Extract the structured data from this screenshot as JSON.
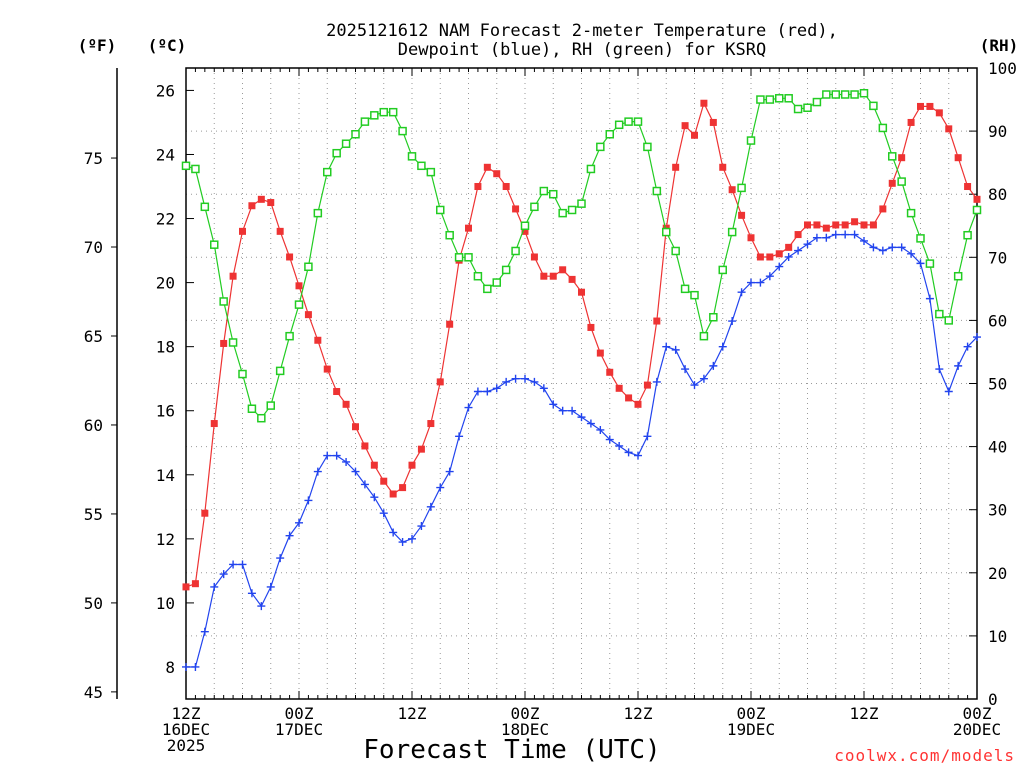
{
  "title_line1": "2025121612 NAM Forecast 2-meter Temperature (red),",
  "title_line2": "Dewpoint (blue), RH (green) for KSRQ",
  "credit": "coolwx.com/models",
  "chart_data": {
    "type": "line",
    "title": "2025121612 NAM Forecast 2-meter Temperature (red), Dewpoint (blue), RH (green) for KSRQ",
    "xlabel": "Forecast Time (UTC)",
    "x_unit": "hours from 12Z 16DEC2025",
    "xlim": [
      0,
      84
    ],
    "x_ticks": [
      {
        "hour": 0,
        "lines": [
          "12Z",
          "16DEC",
          "2025"
        ]
      },
      {
        "hour": 12,
        "lines": [
          "00Z",
          "17DEC"
        ]
      },
      {
        "hour": 24,
        "lines": [
          "12Z"
        ]
      },
      {
        "hour": 36,
        "lines": [
          "00Z",
          "18DEC"
        ]
      },
      {
        "hour": 48,
        "lines": [
          "12Z"
        ]
      },
      {
        "hour": 60,
        "lines": [
          "00Z",
          "19DEC"
        ]
      },
      {
        "hour": 72,
        "lines": [
          "12Z"
        ]
      },
      {
        "hour": 84,
        "lines": [
          "00Z",
          "20DEC"
        ]
      }
    ],
    "axes": {
      "celsius": {
        "label": "(ºC)",
        "range": [
          7.0,
          26.7
        ],
        "ticks": [
          8,
          10,
          12,
          14,
          16,
          18,
          20,
          22,
          24,
          26
        ]
      },
      "fahrenheit": {
        "label": "(ºF)",
        "ticks": [
          45,
          50,
          55,
          60,
          65,
          70,
          75
        ]
      },
      "rh": {
        "label": "(RH)",
        "range": [
          0,
          100
        ],
        "ticks": [
          0,
          10,
          20,
          30,
          40,
          50,
          60,
          70,
          80,
          90,
          100
        ]
      }
    },
    "grid": true,
    "series": [
      {
        "key": "temperature",
        "color": "#ee3333",
        "marker": "filled-square",
        "axis": "celsius",
        "x": [
          0,
          1,
          2,
          3,
          4,
          5,
          6,
          7,
          8,
          9,
          10,
          11,
          12,
          13,
          14,
          15,
          16,
          17,
          18,
          19,
          20,
          21,
          22,
          23,
          24,
          25,
          26,
          27,
          28,
          29,
          30,
          31,
          32,
          33,
          34,
          35,
          36,
          37,
          38,
          39,
          40,
          41,
          42,
          43,
          44,
          45,
          46,
          47,
          48,
          49,
          50,
          51,
          52,
          53,
          54,
          55,
          56,
          57,
          58,
          59,
          60,
          61,
          62,
          63,
          64,
          65,
          66,
          67,
          68,
          69,
          70,
          71,
          72,
          73,
          74,
          75,
          76,
          77,
          78,
          79,
          80,
          81,
          82,
          83,
          84
        ],
        "values": [
          10.5,
          10.6,
          12.8,
          15.6,
          18.1,
          20.2,
          21.6,
          22.4,
          22.6,
          22.5,
          21.6,
          20.8,
          19.9,
          19.0,
          18.2,
          17.3,
          16.6,
          16.2,
          15.5,
          14.9,
          14.3,
          13.8,
          13.4,
          13.6,
          14.3,
          14.8,
          15.6,
          16.9,
          18.7,
          20.7,
          21.7,
          23.0,
          23.6,
          23.4,
          23.0,
          22.3,
          21.6,
          20.8,
          20.2,
          20.2,
          20.4,
          20.1,
          19.7,
          18.6,
          17.8,
          17.2,
          16.7,
          16.4,
          16.2,
          16.8,
          18.8,
          21.7,
          23.6,
          24.9,
          24.6,
          25.6,
          25.0,
          23.6,
          22.9,
          22.1,
          21.4,
          20.8,
          20.8,
          20.9,
          21.1,
          21.5,
          21.8,
          21.8,
          21.7,
          21.8,
          21.8,
          21.9,
          21.8,
          21.8,
          22.3,
          23.1,
          23.9,
          25.0,
          25.5,
          25.5,
          25.3,
          24.8,
          23.9,
          23.0,
          22.6
        ]
      },
      {
        "key": "dewpoint",
        "color": "#2244ee",
        "marker": "plus",
        "axis": "celsius",
        "x": [
          0,
          1,
          2,
          3,
          4,
          5,
          6,
          7,
          8,
          9,
          10,
          11,
          12,
          13,
          14,
          15,
          16,
          17,
          18,
          19,
          20,
          21,
          22,
          23,
          24,
          25,
          26,
          27,
          28,
          29,
          30,
          31,
          32,
          33,
          34,
          35,
          36,
          37,
          38,
          39,
          40,
          41,
          42,
          43,
          44,
          45,
          46,
          47,
          48,
          49,
          50,
          51,
          52,
          53,
          54,
          55,
          56,
          57,
          58,
          59,
          60,
          61,
          62,
          63,
          64,
          65,
          66,
          67,
          68,
          69,
          70,
          71,
          72,
          73,
          74,
          75,
          76,
          77,
          78,
          79,
          80,
          81,
          82,
          83,
          84
        ],
        "values": [
          8.0,
          8.0,
          9.1,
          10.5,
          10.9,
          11.2,
          11.2,
          10.3,
          9.9,
          10.5,
          11.4,
          12.1,
          12.5,
          13.2,
          14.1,
          14.6,
          14.6,
          14.4,
          14.1,
          13.7,
          13.3,
          12.8,
          12.2,
          11.9,
          12.0,
          12.4,
          13.0,
          13.6,
          14.1,
          15.2,
          16.1,
          16.6,
          16.6,
          16.7,
          16.9,
          17.0,
          17.0,
          16.9,
          16.7,
          16.2,
          16.0,
          16.0,
          15.8,
          15.6,
          15.4,
          15.1,
          14.9,
          14.7,
          14.6,
          15.2,
          16.9,
          18.0,
          17.9,
          17.3,
          16.8,
          17.0,
          17.4,
          18.0,
          18.8,
          19.7,
          20.0,
          20.0,
          20.2,
          20.5,
          20.8,
          21.0,
          21.2,
          21.4,
          21.4,
          21.5,
          21.5,
          21.5,
          21.3,
          21.1,
          21.0,
          21.1,
          21.1,
          20.9,
          20.6,
          19.5,
          17.3,
          16.6,
          17.4,
          18.0,
          18.3
        ]
      },
      {
        "key": "rh",
        "color": "#22cc22",
        "marker": "open-square",
        "axis": "rh",
        "x": [
          0,
          1,
          2,
          3,
          4,
          5,
          6,
          7,
          8,
          9,
          10,
          11,
          12,
          13,
          14,
          15,
          16,
          17,
          18,
          19,
          20,
          21,
          22,
          23,
          24,
          25,
          26,
          27,
          28,
          29,
          30,
          31,
          32,
          33,
          34,
          35,
          36,
          37,
          38,
          39,
          40,
          41,
          42,
          43,
          44,
          45,
          46,
          47,
          48,
          49,
          50,
          51,
          52,
          53,
          54,
          55,
          56,
          57,
          58,
          59,
          60,
          61,
          62,
          63,
          64,
          65,
          66,
          67,
          68,
          69,
          70,
          71,
          72,
          73,
          74,
          75,
          76,
          77,
          78,
          79,
          80,
          81,
          82,
          83,
          84
        ],
        "values": [
          84.5,
          84.0,
          78.0,
          72.0,
          63.0,
          56.5,
          51.5,
          46.0,
          44.5,
          46.5,
          52.0,
          57.5,
          62.5,
          68.5,
          77.0,
          83.5,
          86.5,
          88.0,
          89.5,
          91.5,
          92.5,
          93.0,
          93.0,
          90.0,
          86.0,
          84.5,
          83.5,
          77.5,
          73.5,
          70.0,
          70.0,
          67.0,
          65.0,
          66.0,
          68.0,
          71.0,
          75.0,
          78.0,
          80.5,
          80.0,
          77.0,
          77.5,
          78.5,
          84.0,
          87.5,
          89.5,
          91.0,
          91.5,
          91.5,
          87.5,
          80.5,
          74.0,
          71.0,
          65.0,
          64.0,
          57.5,
          60.5,
          68.0,
          74.0,
          81.0,
          88.5,
          95.0,
          95.0,
          95.2,
          95.2,
          93.5,
          93.7,
          94.6,
          95.8,
          95.8,
          95.8,
          95.8,
          96.0,
          94.0,
          90.5,
          86.0,
          82.0,
          77.0,
          73.0,
          69.0,
          61.0,
          60.0,
          67.0,
          73.5,
          77.5
        ]
      }
    ]
  }
}
